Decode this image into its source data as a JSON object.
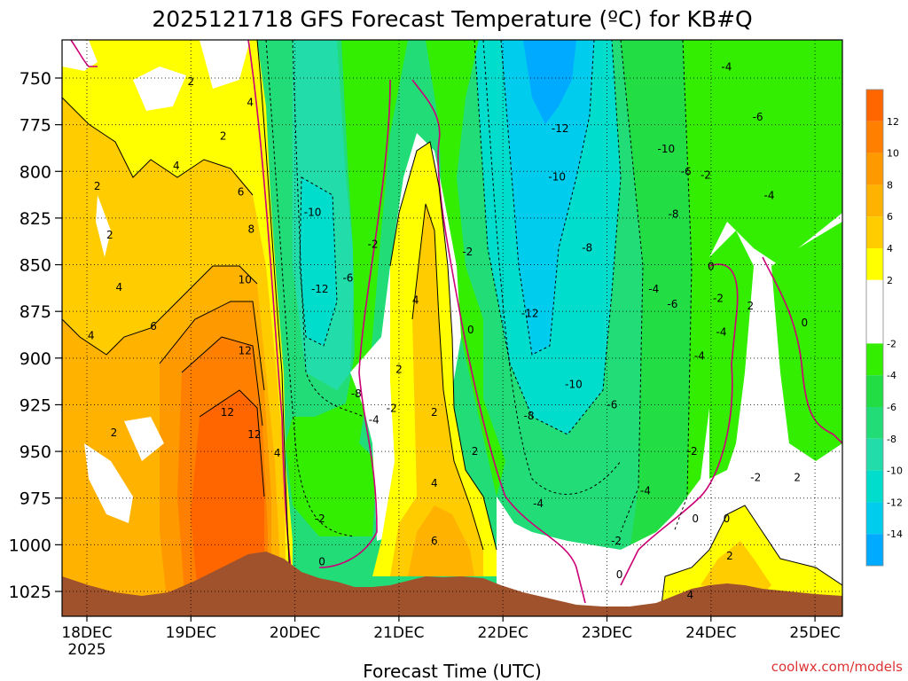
{
  "chart_data": {
    "type": "heatmap",
    "title": "2025121718 GFS Forecast Temperature (ºC) for KB#Q",
    "xlabel": "Forecast Time (UTC)",
    "ylabel": "",
    "credit": "coolwx.com/models",
    "x_ticks": [
      "18DEC",
      "19DEC",
      "20DEC",
      "21DEC",
      "22DEC",
      "23DEC",
      "24DEC",
      "25DEC"
    ],
    "x_subtick": "2025",
    "y_ticks": [
      750,
      775,
      800,
      825,
      850,
      875,
      900,
      925,
      950,
      975,
      1000,
      1025
    ],
    "ylim_hPa": [
      1035,
      730
    ],
    "colorbar_ticks": [
      12,
      10,
      8,
      6,
      4,
      2,
      -2,
      -4,
      -6,
      -8,
      -10,
      -12,
      -14
    ],
    "colorbar_bands": [
      {
        "min": 12,
        "max": 14,
        "color": "#ff6600"
      },
      {
        "min": 10,
        "max": 12,
        "color": "#ff8000"
      },
      {
        "min": 8,
        "max": 10,
        "color": "#ff9900"
      },
      {
        "min": 6,
        "max": 8,
        "color": "#ffb300"
      },
      {
        "min": 4,
        "max": 6,
        "color": "#ffcc00"
      },
      {
        "min": 2,
        "max": 4,
        "color": "#ffff00"
      },
      {
        "min": -2,
        "max": 2,
        "color": "#ffffff"
      },
      {
        "min": -4,
        "max": -2,
        "color": "#33ee00"
      },
      {
        "min": -6,
        "max": -4,
        "color": "#22dd44"
      },
      {
        "min": -8,
        "max": -6,
        "color": "#22dd77"
      },
      {
        "min": -10,
        "max": -8,
        "color": "#22ddaa"
      },
      {
        "min": -12,
        "max": -10,
        "color": "#00ddcc"
      },
      {
        "min": -14,
        "max": -12,
        "color": "#00ccee"
      },
      {
        "min": -16,
        "max": -14,
        "color": "#00aaff"
      }
    ],
    "contour_labels": [
      {
        "text": "2",
        "day": 1.0,
        "p": 752
      },
      {
        "text": "4",
        "day": 1.57,
        "p": 763
      },
      {
        "text": "2",
        "day": 1.31,
        "p": 781
      },
      {
        "text": "4",
        "day": 0.86,
        "p": 797
      },
      {
        "text": "2",
        "day": 0.1,
        "p": 808
      },
      {
        "text": "6",
        "day": 1.48,
        "p": 811
      },
      {
        "text": "2",
        "day": 0.22,
        "p": 834
      },
      {
        "text": "8",
        "day": 1.58,
        "p": 831
      },
      {
        "text": "4",
        "day": 0.31,
        "p": 862
      },
      {
        "text": "10",
        "day": 1.52,
        "p": 858
      },
      {
        "text": "6",
        "day": 0.64,
        "p": 883
      },
      {
        "text": "4",
        "day": 0.04,
        "p": 888
      },
      {
        "text": "12",
        "day": 1.52,
        "p": 896
      },
      {
        "text": "2",
        "day": 0.26,
        "p": 940
      },
      {
        "text": "12",
        "day": 1.35,
        "p": 929
      },
      {
        "text": "12",
        "day": 1.61,
        "p": 941
      },
      {
        "text": "4",
        "day": 1.83,
        "p": 951
      },
      {
        "text": "-10",
        "day": 2.17,
        "p": 822
      },
      {
        "text": "-12",
        "day": 2.24,
        "p": 863
      },
      {
        "text": "-6",
        "day": 2.51,
        "p": 857
      },
      {
        "text": "-2",
        "day": 2.75,
        "p": 839
      },
      {
        "text": "-8",
        "day": 2.59,
        "p": 919
      },
      {
        "text": "-4",
        "day": 2.76,
        "p": 933
      },
      {
        "text": "-2",
        "day": 2.93,
        "p": 927
      },
      {
        "text": "-2",
        "day": 2.24,
        "p": 986
      },
      {
        "text": "0",
        "day": 2.26,
        "p": 1009
      },
      {
        "text": "2",
        "day": 3.0,
        "p": 906
      },
      {
        "text": "4",
        "day": 3.16,
        "p": 869
      },
      {
        "text": "2",
        "day": 3.34,
        "p": 929
      },
      {
        "text": "4",
        "day": 3.34,
        "p": 967
      },
      {
        "text": "6",
        "day": 3.34,
        "p": 998
      },
      {
        "text": "2",
        "day": 3.73,
        "p": 950
      },
      {
        "text": "-2",
        "day": 3.66,
        "p": 843
      },
      {
        "text": "0",
        "day": 3.69,
        "p": 885
      },
      {
        "text": "-12",
        "day": 4.55,
        "p": 777
      },
      {
        "text": "-10",
        "day": 4.52,
        "p": 803
      },
      {
        "text": "-8",
        "day": 4.81,
        "p": 841
      },
      {
        "text": "-12",
        "day": 4.26,
        "p": 876
      },
      {
        "text": "-10",
        "day": 4.68,
        "p": 914
      },
      {
        "text": "-8",
        "day": 4.25,
        "p": 931
      },
      {
        "text": "-6",
        "day": 5.05,
        "p": 925
      },
      {
        "text": "-4",
        "day": 4.34,
        "p": 978
      },
      {
        "text": "-2",
        "day": 5.09,
        "p": 998
      },
      {
        "text": "0",
        "day": 5.12,
        "p": 1016
      },
      {
        "text": "-4",
        "day": 5.37,
        "p": 971
      },
      {
        "text": "-10",
        "day": 5.57,
        "p": 788
      },
      {
        "text": "-8",
        "day": 5.64,
        "p": 823
      },
      {
        "text": "-6",
        "day": 5.76,
        "p": 800
      },
      {
        "text": "-4",
        "day": 5.45,
        "p": 863
      },
      {
        "text": "-6",
        "day": 5.63,
        "p": 871
      },
      {
        "text": "-4",
        "day": 5.89,
        "p": 899
      },
      {
        "text": "-2",
        "day": 5.82,
        "p": 950
      },
      {
        "text": "-4",
        "day": 6.15,
        "p": 744
      },
      {
        "text": "-6",
        "day": 6.45,
        "p": 771
      },
      {
        "text": "-2",
        "day": 5.95,
        "p": 802
      },
      {
        "text": "-4",
        "day": 6.56,
        "p": 813
      },
      {
        "text": "0",
        "day": 6.0,
        "p": 851
      },
      {
        "text": "-2",
        "day": 6.07,
        "p": 868
      },
      {
        "text": "-4",
        "day": 6.1,
        "p": 886
      },
      {
        "text": "2",
        "day": 6.38,
        "p": 872
      },
      {
        "text": "0",
        "day": 6.9,
        "p": 881
      },
      {
        "text": "0",
        "day": 5.85,
        "p": 986
      },
      {
        "text": "0",
        "day": 6.15,
        "p": 986
      },
      {
        "text": "-2",
        "day": 6.43,
        "p": 964
      },
      {
        "text": "2",
        "day": 6.18,
        "p": 1006
      },
      {
        "text": "4",
        "day": 5.8,
        "p": 1027
      },
      {
        "text": "2",
        "day": 6.83,
        "p": 964
      }
    ]
  }
}
